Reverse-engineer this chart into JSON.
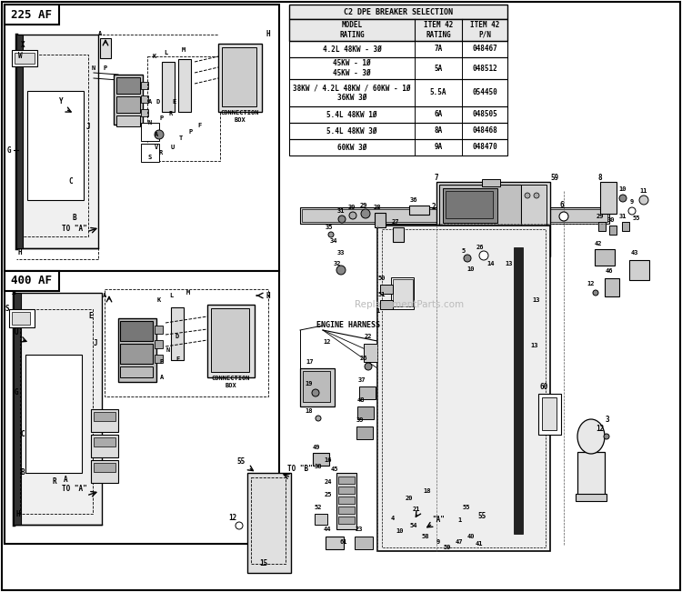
{
  "bg_color": "#ffffff",
  "box_225_label": "225 AF",
  "box_400_label": "400 AF",
  "table_title": "C2 DPE BREAKER SELECTION",
  "table_headers": [
    "MODEL\nRATING",
    "ITEM 42\nRATING",
    "ITEM 42\nP/N"
  ],
  "table_rows": [
    [
      "4.2L 48KW - 3Ø",
      "7A",
      "048467"
    ],
    [
      "45KW - 1Ø\n45KW - 3Ø",
      "5A",
      "048512"
    ],
    [
      "38KW / 4.2L 48KW / 60KW - 1Ø\n36KW 3Ø",
      "5.5A",
      "054450"
    ],
    [
      "5.4L 48KW 1Ø",
      "6A",
      "048505"
    ],
    [
      "5.4L 48KW 3Ø",
      "8A",
      "048468"
    ],
    [
      "60KW 3Ø",
      "9A",
      "048470"
    ]
  ],
  "watermark": "ReplacementParts.com",
  "fig_width": 7.5,
  "fig_height": 6.51,
  "dpi": 100
}
